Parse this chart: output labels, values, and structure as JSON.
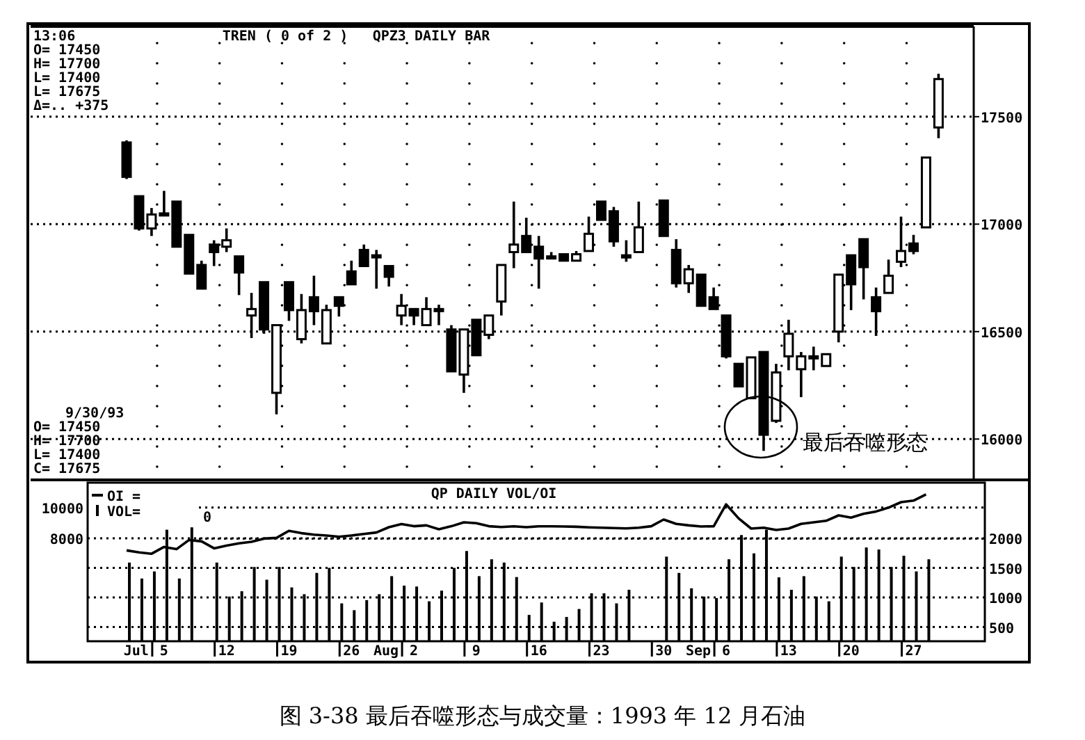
{
  "chart_data": [
    {
      "type": "candlestick",
      "title": "QPZ3 DAILY BAR",
      "categories": [
        null,
        null,
        null,
        "5",
        null,
        null,
        null,
        null,
        "12",
        null,
        null,
        null,
        null,
        "19",
        null,
        null,
        null,
        null,
        "26",
        null,
        null,
        null,
        null,
        "2",
        null,
        null,
        null,
        null,
        "9",
        null,
        null,
        null,
        null,
        "16",
        null,
        null,
        null,
        null,
        "23",
        null,
        null,
        null,
        null,
        "30",
        null,
        null,
        null,
        null,
        "6",
        null,
        null,
        null,
        null,
        "13",
        null,
        null,
        null,
        null,
        "20",
        null,
        null,
        null,
        null,
        "27",
        null,
        null
      ],
      "ohlc": [
        [
          17380,
          17390,
          17210,
          17220
        ],
        [
          17130,
          17130,
          16970,
          16980
        ],
        [
          16980,
          17075,
          16945,
          17045
        ],
        [
          17045,
          17155,
          17040,
          17050
        ],
        [
          17105,
          17105,
          16895,
          16895
        ],
        [
          16950,
          16950,
          16770,
          16770
        ],
        [
          16810,
          16830,
          16700,
          16700
        ],
        [
          16905,
          16925,
          16805,
          16870
        ],
        [
          16895,
          16980,
          16870,
          16925
        ],
        [
          16850,
          16850,
          16670,
          16775
        ],
        [
          16575,
          16680,
          16470,
          16605
        ],
        [
          16730,
          16730,
          16490,
          16510
        ],
        [
          16215,
          16530,
          16115,
          16530
        ],
        [
          16730,
          16730,
          16550,
          16600
        ],
        [
          16465,
          16675,
          16445,
          16600
        ],
        [
          16660,
          16760,
          16530,
          16595
        ],
        [
          16445,
          16625,
          16445,
          16600
        ],
        [
          16660,
          16660,
          16570,
          16620
        ],
        [
          16780,
          16830,
          16720,
          16720
        ],
        [
          16880,
          16905,
          16805,
          16805
        ],
        [
          16855,
          16880,
          16700,
          16850
        ],
        [
          16805,
          16805,
          16710,
          16755
        ],
        [
          16575,
          16675,
          16530,
          16620
        ],
        [
          16605,
          16605,
          16530,
          16575
        ],
        [
          16530,
          16660,
          16530,
          16605
        ],
        [
          16605,
          16625,
          16530,
          16600
        ],
        [
          16510,
          16530,
          16315,
          16315
        ],
        [
          16300,
          16510,
          16215,
          16510
        ],
        [
          16555,
          16555,
          16390,
          16390
        ],
        [
          16485,
          16575,
          16465,
          16575
        ],
        [
          16640,
          16810,
          16575,
          16810
        ],
        [
          16870,
          17105,
          16795,
          16905
        ],
        [
          16945,
          17030,
          16870,
          16870
        ],
        [
          16895,
          16945,
          16700,
          16840
        ],
        [
          16850,
          16870,
          16840,
          16845
        ],
        [
          16860,
          16860,
          16830,
          16830
        ],
        [
          16830,
          16875,
          16830,
          16860
        ],
        [
          16875,
          17035,
          16875,
          16955
        ],
        [
          17105,
          17105,
          17020,
          17020
        ],
        [
          17060,
          17080,
          16895,
          16920
        ],
        [
          16855,
          16925,
          16825,
          16845
        ],
        [
          16870,
          17105,
          16870,
          16985
        ],
        null,
        [
          17110,
          17110,
          16945,
          16945
        ],
        [
          16880,
          16930,
          16705,
          16725
        ],
        [
          16725,
          16810,
          16680,
          16790
        ],
        [
          16765,
          16765,
          16620,
          16620
        ],
        [
          16660,
          16705,
          16605,
          16605
        ],
        [
          16575,
          16575,
          16375,
          16385
        ],
        [
          16350,
          16350,
          16245,
          16245
        ],
        [
          16190,
          16380,
          16190,
          16380
        ],
        [
          16405,
          16405,
          15945,
          16020
        ],
        [
          16085,
          16350,
          16075,
          16310
        ],
        [
          16385,
          16555,
          16320,
          16490
        ],
        [
          16325,
          16405,
          16195,
          16385
        ],
        [
          16380,
          16430,
          16320,
          16385
        ],
        [
          16340,
          16395,
          16340,
          16395
        ],
        [
          16500,
          16765,
          16450,
          16765
        ],
        [
          16855,
          16855,
          16600,
          16720
        ],
        [
          16930,
          16930,
          16650,
          16800
        ],
        [
          16660,
          16705,
          16480,
          16595
        ],
        [
          16680,
          16835,
          16680,
          16760
        ],
        [
          16825,
          17035,
          16800,
          16875
        ],
        [
          16910,
          16950,
          16860,
          16875
        ],
        [
          16985,
          17310,
          16985,
          17310
        ],
        [
          17450,
          17700,
          17400,
          17675
        ]
      ],
      "ylim": [
        15810,
        17920
      ],
      "yticks": [
        16000,
        16500,
        17000,
        17500
      ],
      "grid": "y",
      "tick_labels": "y",
      "annotations": [
        "13:06",
        "TREN ( 0 of 2 )",
        "O= 17450",
        "H= 17700",
        "L= 17400",
        "L= 17675",
        "Δ=.. +375",
        "9/30/93",
        "O= 17450",
        "H= 17700",
        "L= 17400",
        "C= 17675",
        "最后吞噬形态"
      ]
    },
    {
      "type": "bar",
      "title": "QP DAILY VOL/OI",
      "categories": [
        null,
        null,
        null,
        "5",
        null,
        null,
        null,
        null,
        "12",
        null,
        null,
        null,
        null,
        "19",
        null,
        null,
        null,
        null,
        "26",
        null,
        null,
        null,
        null,
        "2",
        null,
        null,
        null,
        null,
        "9",
        null,
        null,
        null,
        null,
        "16",
        null,
        null,
        null,
        null,
        "23",
        null,
        null,
        null,
        null,
        "30",
        null,
        null,
        null,
        null,
        "6",
        null,
        null,
        null,
        null,
        "13",
        null,
        null,
        null,
        null,
        "20",
        null,
        null,
        null,
        null,
        "27",
        null,
        null
      ],
      "series": [
        {
          "name": "VOL=",
          "type": "bar",
          "axis": "y2",
          "color": "#000000",
          "values": [
            1590,
            1320,
            1440,
            2145,
            1320,
            2185,
            null,
            1590,
            1015,
            1105,
            1515,
            1300,
            1515,
            1170,
            1055,
            1415,
            1500,
            900,
            785,
            955,
            1055,
            1360,
            1200,
            1185,
            935,
            1115,
            1500,
            1785,
            1360,
            1645,
            1590,
            1345,
            705,
            915,
            590,
            670,
            805,
            1070,
            1070,
            900,
            1130,
            null,
            null,
            1690,
            1415,
            1155,
            1015,
            990,
            1645,
            2055,
            1745,
            2145,
            1340,
            1130,
            1360,
            1015,
            935,
            1690,
            1515,
            1845,
            1810,
            1515,
            1705,
            1440,
            1645,
            null
          ]
        },
        {
          "name": "OI =",
          "type": "line",
          "color": "#000000",
          "values": [
            7240,
            7120,
            7030,
            7470,
            7320,
            7910,
            7820,
            7380,
            7560,
            7700,
            7800,
            8000,
            8050,
            8500,
            8350,
            8250,
            8200,
            8120,
            8200,
            8300,
            8400,
            8735,
            8940,
            8800,
            8850,
            8600,
            8800,
            9050,
            9000,
            8800,
            8750,
            8790,
            8740,
            8790,
            8790,
            8780,
            8760,
            8730,
            8700,
            8680,
            8660,
            8700,
            8800,
            9230,
            8950,
            8850,
            8780,
            8800,
            10200,
            9300,
            8650,
            8700,
            8560,
            8650,
            8950,
            9050,
            9150,
            9500,
            9350,
            9600,
            9750,
            10000,
            10350,
            10450,
            10850,
            null
          ]
        }
      ],
      "ylim": [
        1400,
        11600
      ],
      "yticks": [
        8000,
        10000
      ],
      "y2lim": [
        260,
        2940
      ],
      "y2ticks": [
        500,
        1000,
        1500,
        2000
      ],
      "grid": "y",
      "legend": "top left",
      "annotations": [
        "0",
        "Jul",
        "Aug",
        "Sep",
        "图 3-38   最后吞噬形态与成交量：1993 年 12 月石油"
      ]
    }
  ]
}
